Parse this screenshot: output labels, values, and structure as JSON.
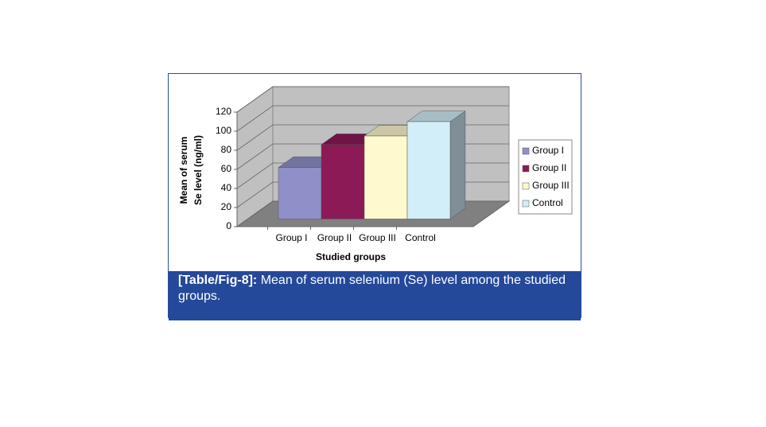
{
  "chart_data": {
    "type": "bar",
    "y_label": [
      "Mean of serum",
      "Se level (ng/ml)"
    ],
    "x_label": "Studied groups",
    "categories": [
      "Group I",
      "Group II",
      "Group III",
      "Control"
    ],
    "values": [
      54,
      78,
      87,
      102
    ],
    "colors": [
      "#9090c8",
      "#8b1a56",
      "#fef9cf",
      "#d2eef8"
    ],
    "ylim": [
      0,
      120
    ],
    "yticks": [
      0,
      20,
      40,
      60,
      80,
      100,
      120
    ],
    "grid": true,
    "legend": "right"
  },
  "caption": {
    "label": "[Table/Fig-8]:",
    "text": "Mean of serum selenium (Se) level among the studied groups."
  }
}
